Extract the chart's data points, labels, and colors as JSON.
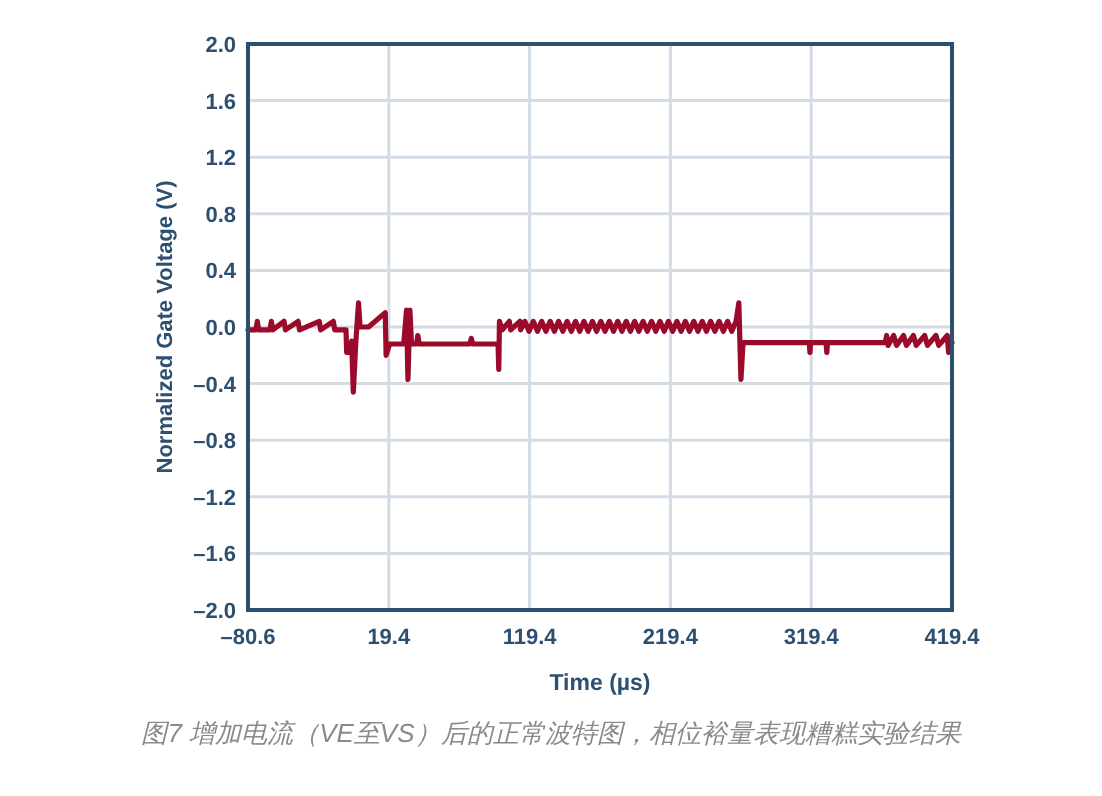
{
  "chart_data": {
    "type": "line",
    "xlabel": "Time (µs)",
    "ylabel": "Normalized Gate Voltage (V)",
    "annotations": [
      "图7 增加电流（VE至VS）后的正常波特图，相位裕量表现糟糕实验结果"
    ],
    "xlim": [
      -80.6,
      419.4
    ],
    "ylim": [
      -2.0,
      2.0
    ],
    "xticks": [
      {
        "value": -80.6,
        "label": "–80.6"
      },
      19.4,
      119.4,
      219.4,
      319.4,
      419.4
    ],
    "yticks": [
      {
        "value": -2.0,
        "label": "–2.0"
      },
      {
        "value": -1.6,
        "label": "–1.6"
      },
      {
        "value": -1.2,
        "label": "–1.2"
      },
      {
        "value": -0.8,
        "label": "–0.8"
      },
      {
        "value": -0.4,
        "label": "–0.4"
      },
      {
        "value": 0.0,
        "label": "0.0"
      },
      {
        "value": 0.4,
        "label": "0.4"
      },
      {
        "value": 0.8,
        "label": "0.8"
      },
      {
        "value": 1.2,
        "label": "1.2"
      },
      {
        "value": 1.6,
        "label": "1.6"
      },
      {
        "value": 2.0,
        "label": "2.0"
      }
    ],
    "grid": true,
    "line_style": "solid",
    "marker": "none",
    "series": [
      {
        "color": "#9b0a2a",
        "x": [
          -80.6,
          -75,
          -74,
          -73,
          -65,
          -64,
          -63,
          -55,
          -54,
          -45,
          -44,
          -30,
          -29,
          -20,
          -19,
          -11,
          -10.5,
          -8,
          -7,
          -5.8,
          -4,
          -2.1,
          -1,
          5,
          16.9,
          17.5,
          20,
          30,
          32,
          33,
          34.4,
          35.5,
          39.1,
          40,
          41,
          77,
          78,
          79,
          97,
          97.5,
          98,
          100,
          105,
          106,
          112.5,
          113,
          116,
          119,
          122,
          125,
          128,
          131,
          134,
          137,
          140,
          143,
          146,
          149,
          152,
          155,
          158,
          161,
          164,
          167,
          170,
          173,
          176,
          179,
          182,
          185,
          188,
          191,
          194,
          197,
          200,
          203,
          206,
          209,
          212,
          215,
          218,
          221,
          224,
          227,
          230,
          233,
          236,
          239,
          242,
          245,
          248,
          251,
          254,
          257,
          260,
          263,
          266,
          268,
          269.5,
          271,
          318,
          318.5,
          319,
          330,
          330.5,
          331,
          372,
          373,
          374,
          378,
          380,
          385,
          387,
          392,
          394,
          400,
          402,
          408,
          410,
          416,
          417,
          419.4
        ],
        "values": [
          -0.02,
          -0.02,
          0.04,
          -0.02,
          -0.02,
          0.04,
          -0.02,
          0.04,
          -0.02,
          0.04,
          -0.02,
          0.04,
          -0.02,
          0.04,
          -0.02,
          -0.02,
          -0.18,
          -0.18,
          -0.1,
          -0.46,
          -0.1,
          0.17,
          0.0,
          0.0,
          0.1,
          -0.2,
          -0.12,
          -0.12,
          0.12,
          -0.37,
          0.12,
          -0.12,
          -0.12,
          -0.06,
          -0.12,
          -0.12,
          -0.08,
          -0.12,
          -0.12,
          -0.3,
          0.04,
          -0.02,
          0.04,
          -0.02,
          0.04,
          -0.02,
          0.04,
          -0.03,
          0.04,
          -0.03,
          0.04,
          -0.03,
          0.04,
          -0.03,
          0.04,
          -0.03,
          0.04,
          -0.03,
          0.04,
          -0.03,
          0.04,
          -0.03,
          0.04,
          -0.03,
          0.04,
          -0.03,
          0.04,
          -0.03,
          0.04,
          -0.03,
          0.04,
          -0.03,
          0.04,
          -0.03,
          0.04,
          -0.03,
          0.04,
          -0.03,
          0.04,
          -0.03,
          0.04,
          -0.03,
          0.04,
          -0.03,
          0.04,
          -0.03,
          0.04,
          -0.03,
          0.04,
          -0.03,
          0.04,
          -0.03,
          0.04,
          -0.03,
          0.04,
          -0.03,
          0.04,
          0.17,
          -0.37,
          -0.11,
          -0.11,
          -0.18,
          -0.11,
          -0.11,
          -0.18,
          -0.11,
          -0.11,
          -0.06,
          -0.13,
          -0.06,
          -0.13,
          -0.06,
          -0.13,
          -0.06,
          -0.13,
          -0.06,
          -0.13,
          -0.06,
          -0.13,
          -0.06,
          -0.18,
          -0.11
        ]
      }
    ]
  }
}
